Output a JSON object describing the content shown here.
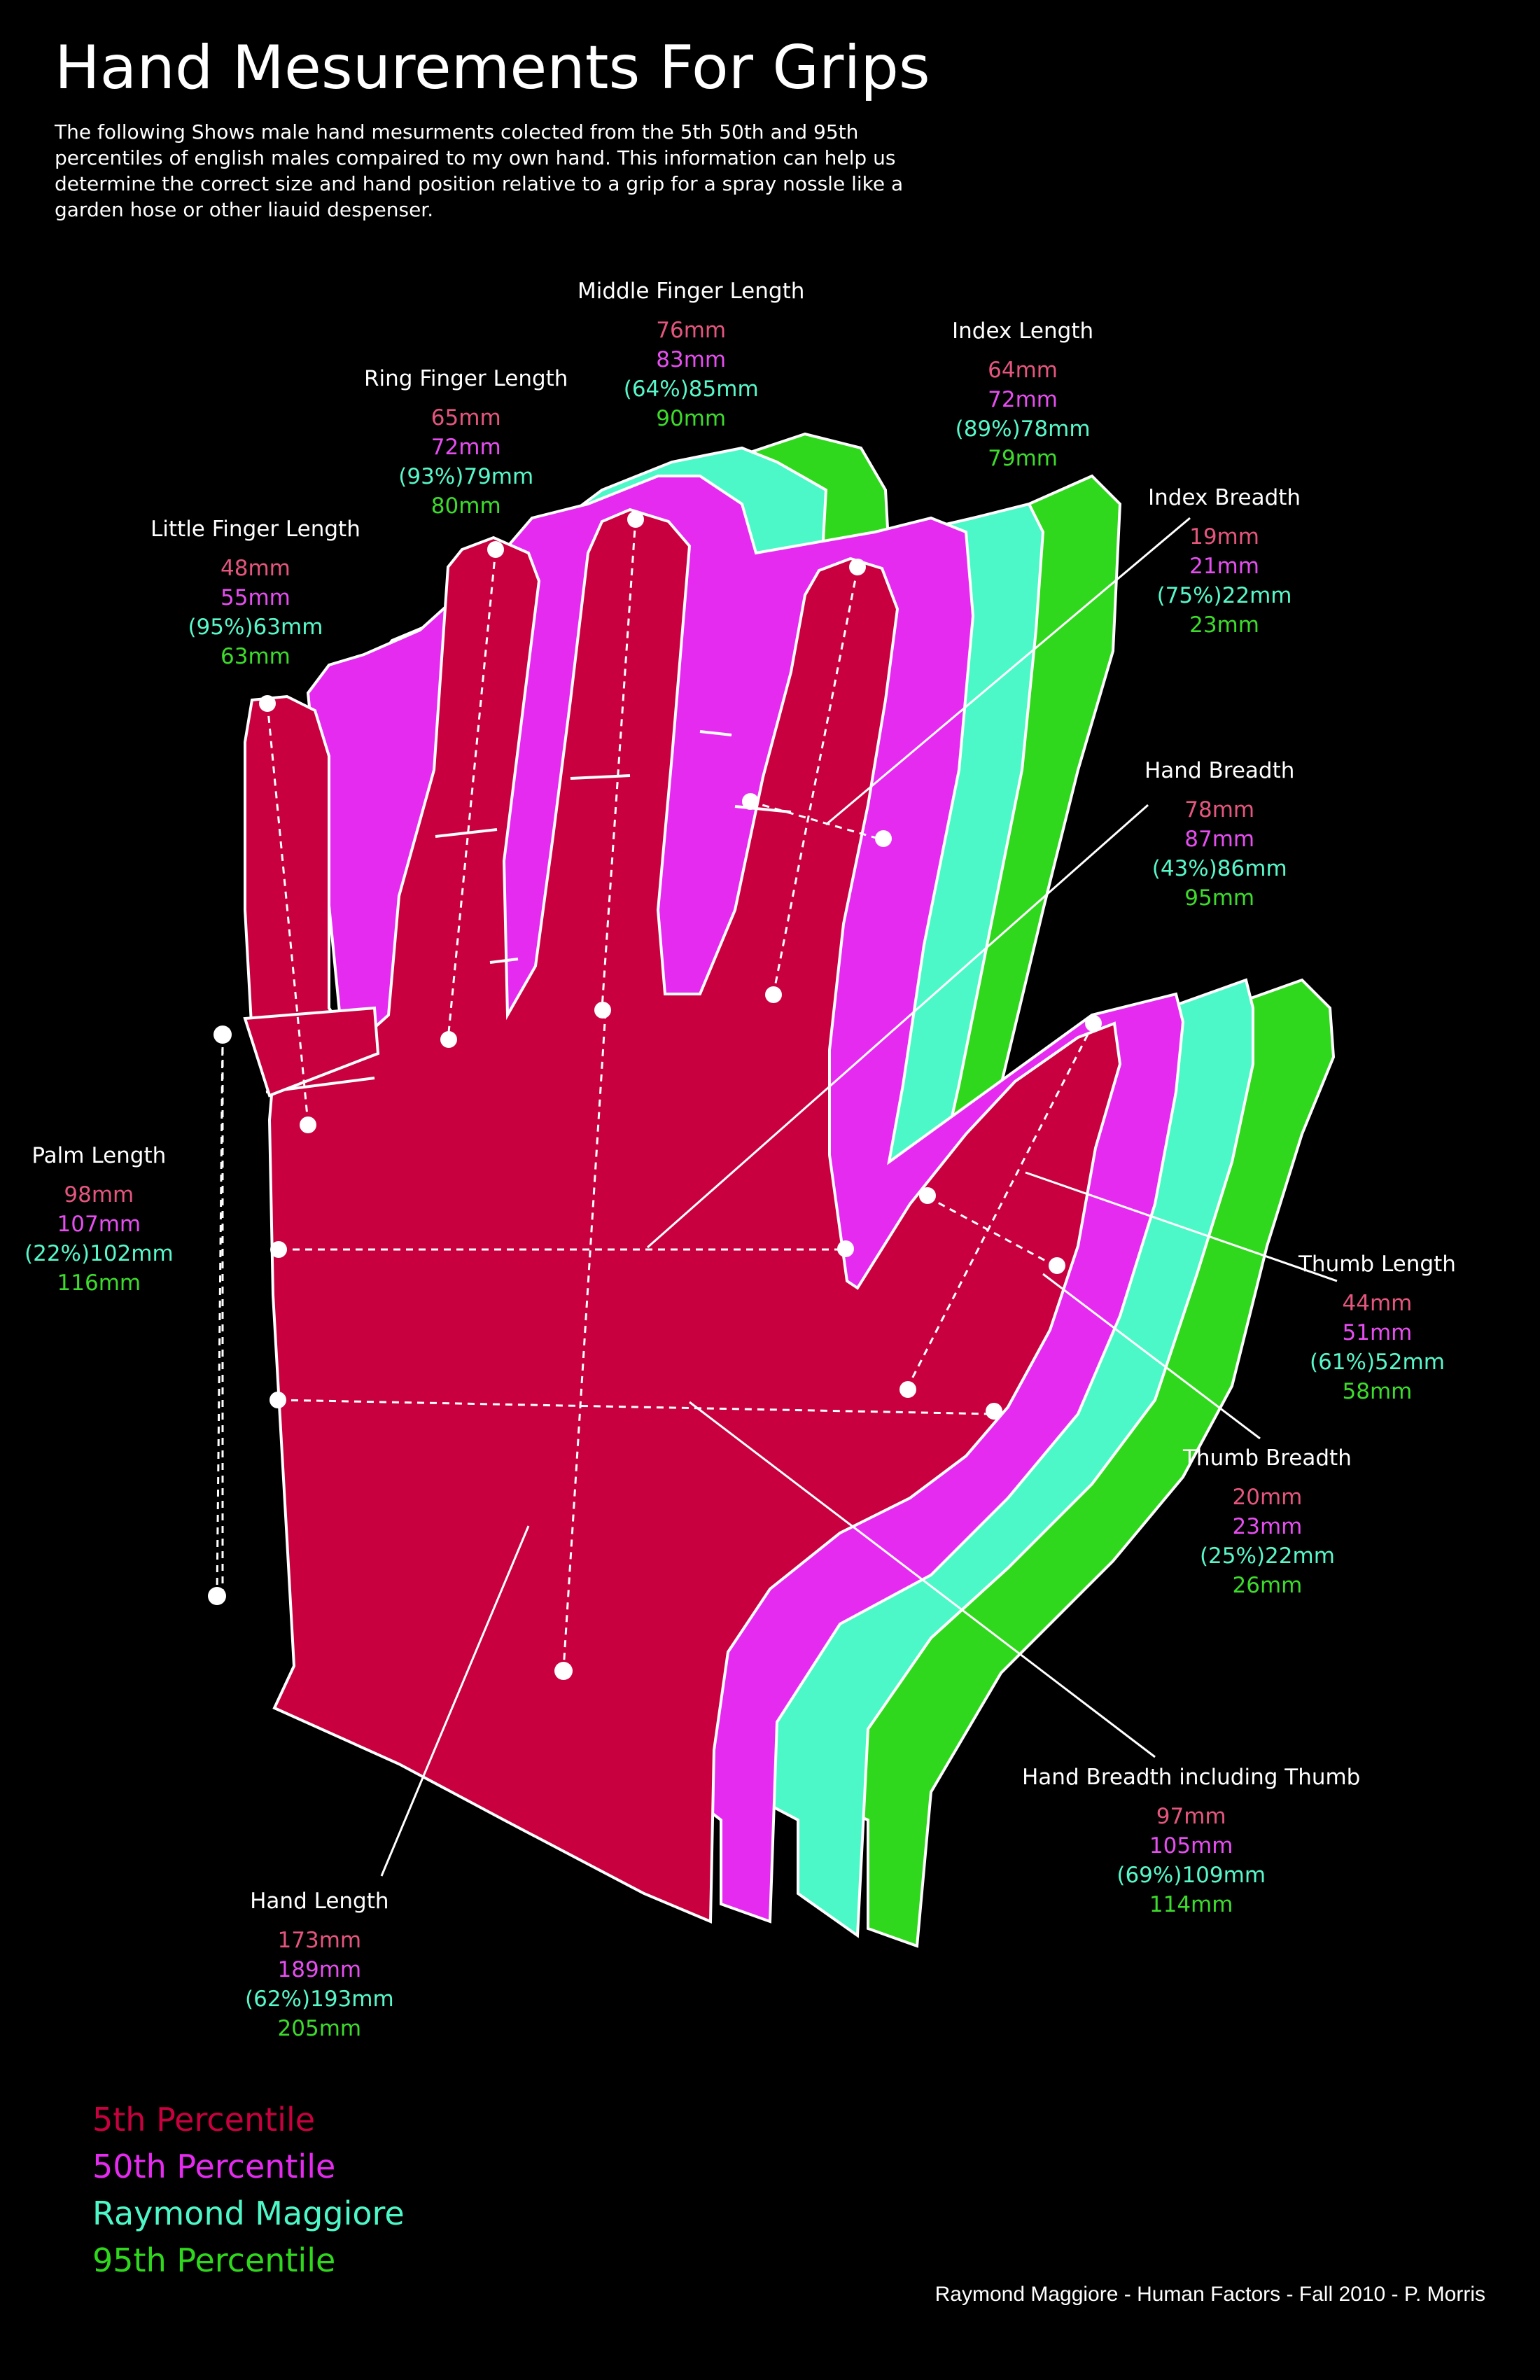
{
  "title": "Hand Mesurements For Grips",
  "intro": "The following Shows male hand mesurments colected from the 5th 50th and 95th percentiles of english males compaired to my own hand. This information can help us determine the correct size and hand position relative to a grip for a spray nossle like a garden hose or other liauid despenser.",
  "colors": {
    "background": "#000000",
    "p5": "#c8003f",
    "p50": "#e62bf0",
    "raymond": "#4df8c8",
    "p95": "#2fd81c",
    "line": "#ffffff"
  },
  "measurements": {
    "middle_finger": {
      "label": "Middle Finger Length",
      "p5": "76mm",
      "p50": "83mm",
      "raymond": "(64%)85mm",
      "p95": "90mm"
    },
    "index_length": {
      "label": "Index Length",
      "p5": "64mm",
      "p50": "72mm",
      "raymond": "(89%)78mm",
      "p95": "79mm"
    },
    "ring_finger": {
      "label": "Ring Finger Length",
      "p5": "65mm",
      "p50": "72mm",
      "raymond": "(93%)79mm",
      "p95": "80mm"
    },
    "little_finger": {
      "label": "Little Finger Length",
      "p5": "48mm",
      "p50": "55mm",
      "raymond": "(95%)63mm",
      "p95": "63mm"
    },
    "index_breadth": {
      "label": "Index Breadth",
      "p5": "19mm",
      "p50": "21mm",
      "raymond": "(75%)22mm",
      "p95": "23mm"
    },
    "hand_breadth": {
      "label": "Hand Breadth",
      "p5": "78mm",
      "p50": "87mm",
      "raymond": "(43%)86mm",
      "p95": "95mm"
    },
    "palm_length": {
      "label": "Palm Length",
      "p5": "98mm",
      "p50": "107mm",
      "raymond": "(22%)102mm",
      "p95": "116mm"
    },
    "thumb_length": {
      "label": "Thumb Length",
      "p5": "44mm",
      "p50": "51mm",
      "raymond": "(61%)52mm",
      "p95": "58mm"
    },
    "thumb_breadth": {
      "label": "Thumb Breadth",
      "p5": "20mm",
      "p50": "23mm",
      "raymond": "(25%)22mm",
      "p95": "26mm"
    },
    "hand_breadth_thumb": {
      "label": "Hand Breadth including Thumb",
      "p5": "97mm",
      "p50": "105mm",
      "raymond": "(69%)109mm",
      "p95": "114mm"
    },
    "hand_length": {
      "label": "Hand Length",
      "p5": "173mm",
      "p50": "189mm",
      "raymond": "(62%)193mm",
      "p95": "205mm"
    }
  },
  "legend": {
    "p5": "5th Percentile",
    "p50": "50th Percentile",
    "raymond": "Raymond Maggiore",
    "p95": "95th Percentile"
  },
  "credit": "Raymond Maggiore - Human Factors - Fall 2010 - P. Morris"
}
